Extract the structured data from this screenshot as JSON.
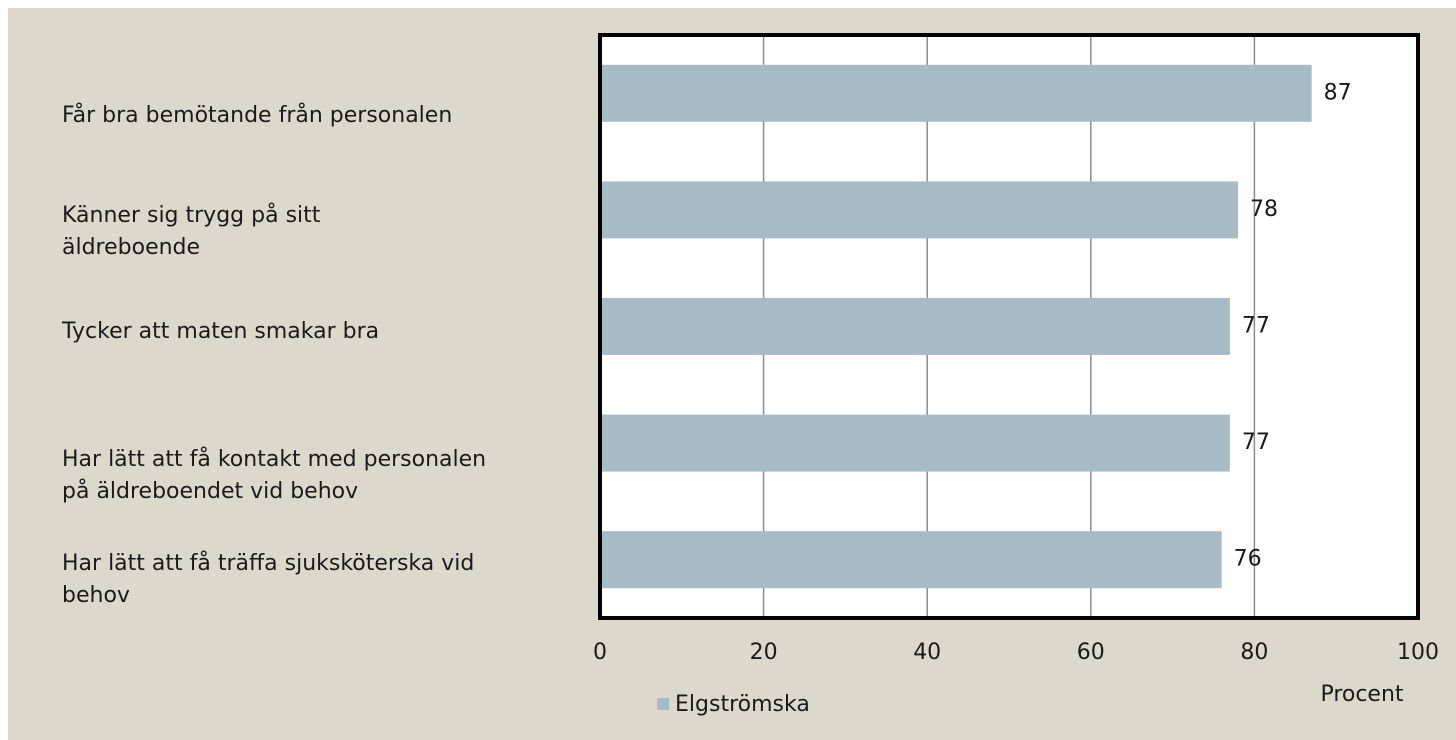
{
  "chart_data": {
    "type": "bar",
    "orientation": "horizontal",
    "categories": [
      "Får bra bemötande från personalen",
      "Känner sig trygg på sitt äldreboende",
      "Tycker att maten smakar bra",
      "Har lätt att få kontakt med personalen på äldreboendet vid behov",
      "Har lätt att få träffa sjuksköterska vid behov"
    ],
    "series": [
      {
        "name": "Elgströmska",
        "color": "#a7bbc6",
        "values": [
          87,
          78,
          77,
          77,
          76
        ]
      }
    ],
    "xlim": [
      0,
      100
    ],
    "xticks": [
      0,
      20,
      40,
      60,
      80,
      100
    ],
    "xlabel": "Procent",
    "grid": true,
    "legend": "bottom"
  }
}
